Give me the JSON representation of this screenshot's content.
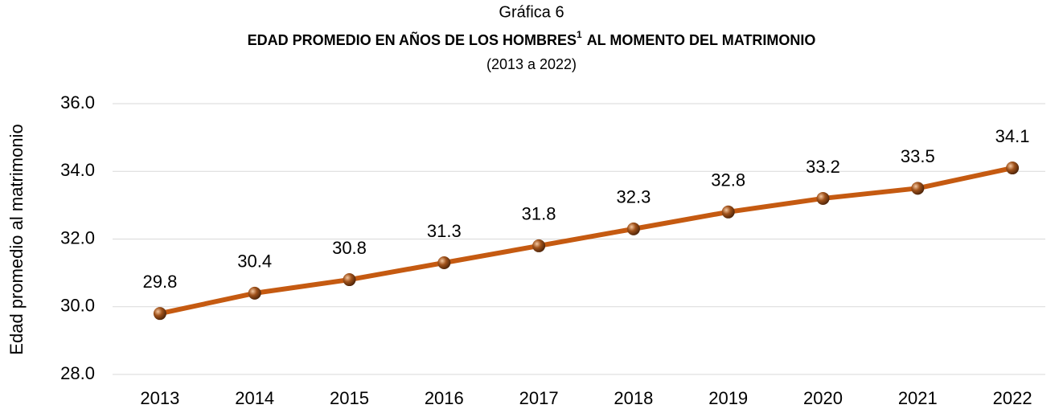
{
  "chart_data": {
    "type": "line",
    "supertitle": "Gráfica 6",
    "title": {
      "before": "EDAD PROMEDIO EN AÑOS DE LOS HOMBRES",
      "footnote": "1",
      "after": "AL MOMENTO DEL MATRIMONIO"
    },
    "subtitle": "(2013 a 2022)",
    "y_label": "Edad promedio al matrimonio",
    "categories": [
      "2013",
      "2014",
      "2015",
      "2016",
      "2017",
      "2018",
      "2019",
      "2020",
      "2021",
      "2022"
    ],
    "values": [
      29.8,
      30.4,
      30.8,
      31.3,
      31.8,
      32.3,
      32.8,
      33.2,
      33.5,
      34.1
    ],
    "color": "#c55a11",
    "ylim": [
      28,
      36
    ],
    "yticks": [
      {
        "value": 28,
        "label": "28.0"
      },
      {
        "value": 30,
        "label": "30.0"
      },
      {
        "value": 32,
        "label": "32.0"
      },
      {
        "value": 34,
        "label": "34.0"
      },
      {
        "value": 36,
        "label": "36.0"
      }
    ],
    "grid": true
  }
}
